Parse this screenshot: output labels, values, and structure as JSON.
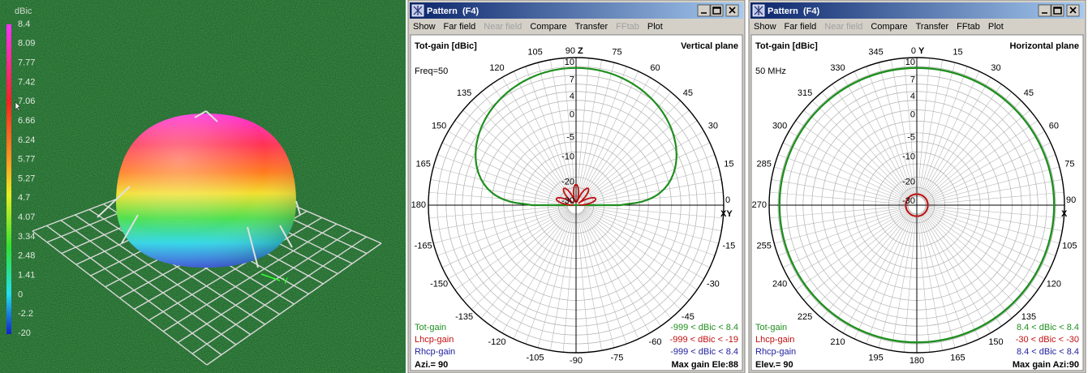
{
  "view3d": {
    "scale_title": "dBic",
    "scale_labels": [
      "8.4",
      "8.09",
      "7.77",
      "7.42",
      "7.06",
      "6.66",
      "6.24",
      "5.77",
      "5.27",
      "4.7",
      "4.07",
      "3.34",
      "2.48",
      "1.41",
      "0",
      "-2.2",
      "-20"
    ],
    "axis_label": "Y"
  },
  "windows": [
    {
      "title": "Pattern  (F4)",
      "menu": [
        {
          "label": "Show",
          "enabled": true
        },
        {
          "label": "Far field",
          "enabled": true
        },
        {
          "label": "Near field",
          "enabled": false
        },
        {
          "label": "Compare",
          "enabled": true
        },
        {
          "label": "Transfer",
          "enabled": true
        },
        {
          "label": "FFtab",
          "enabled": false
        },
        {
          "label": "Plot",
          "enabled": true
        }
      ],
      "gain_label": "Tot-gain [dBic]",
      "plane": "Vertical plane",
      "freq": "Freq=50",
      "pattern": "vertical",
      "angle_labels": [
        "90",
        "75",
        "60",
        "45",
        "30",
        "15",
        "0",
        "-15",
        "-30",
        "-45",
        "-60",
        "-75",
        "-90",
        "-105",
        "-120",
        "-135",
        "-150",
        "-165",
        "180",
        "165",
        "150",
        "135",
        "120",
        "105"
      ],
      "axis_top": "Z",
      "axis_right": "XY",
      "ring_labels": [
        "10",
        "7",
        "4",
        "0",
        "-5",
        "-10",
        "-20",
        "-30"
      ],
      "legend": [
        {
          "name": "Tot-gain",
          "range": "-999 < dBic < 8.4",
          "color": "#1f8f1f"
        },
        {
          "name": "Lhcp-gain",
          "range": "-999 < dBic < -19",
          "color": "#c01010"
        },
        {
          "name": "Rhcp-gain",
          "range": "-999 < dBic < 8.4",
          "color": "#2020a0"
        }
      ],
      "footer_left": "Azi.= 90",
      "footer_right": "Max gain Ele:88"
    },
    {
      "title": "Pattern  (F4)",
      "menu": [
        {
          "label": "Show",
          "enabled": true
        },
        {
          "label": "Far field",
          "enabled": true
        },
        {
          "label": "Near field",
          "enabled": false
        },
        {
          "label": "Compare",
          "enabled": true
        },
        {
          "label": "Transfer",
          "enabled": true
        },
        {
          "label": "FFtab",
          "enabled": true
        },
        {
          "label": "Plot",
          "enabled": true
        }
      ],
      "gain_label": "Tot-gain [dBic]",
      "plane": "Horizontal plane",
      "freq": "50 MHz",
      "pattern": "horizontal",
      "angle_labels": [
        "0",
        "15",
        "30",
        "45",
        "60",
        "75",
        "90",
        "105",
        "120",
        "135",
        "150",
        "165",
        "180",
        "195",
        "210",
        "225",
        "240",
        "255",
        "270",
        "285",
        "300",
        "315",
        "330",
        "345"
      ],
      "axis_top": "Y",
      "axis_right": "X",
      "ring_labels": [
        "10",
        "7",
        "4",
        "0",
        "-5",
        "-10",
        "-20",
        "-30"
      ],
      "legend": [
        {
          "name": "Tot-gain",
          "range": "8.4 < dBic < 8.4",
          "color": "#1f8f1f"
        },
        {
          "name": "Lhcp-gain",
          "range": "-30 < dBic < -30",
          "color": "#c01010"
        },
        {
          "name": "Rhcp-gain",
          "range": "8.4 < dBic < 8.4",
          "color": "#2020a0"
        }
      ],
      "footer_left": "Elev.= 90",
      "footer_right": "Max gain Azi:90"
    }
  ]
}
